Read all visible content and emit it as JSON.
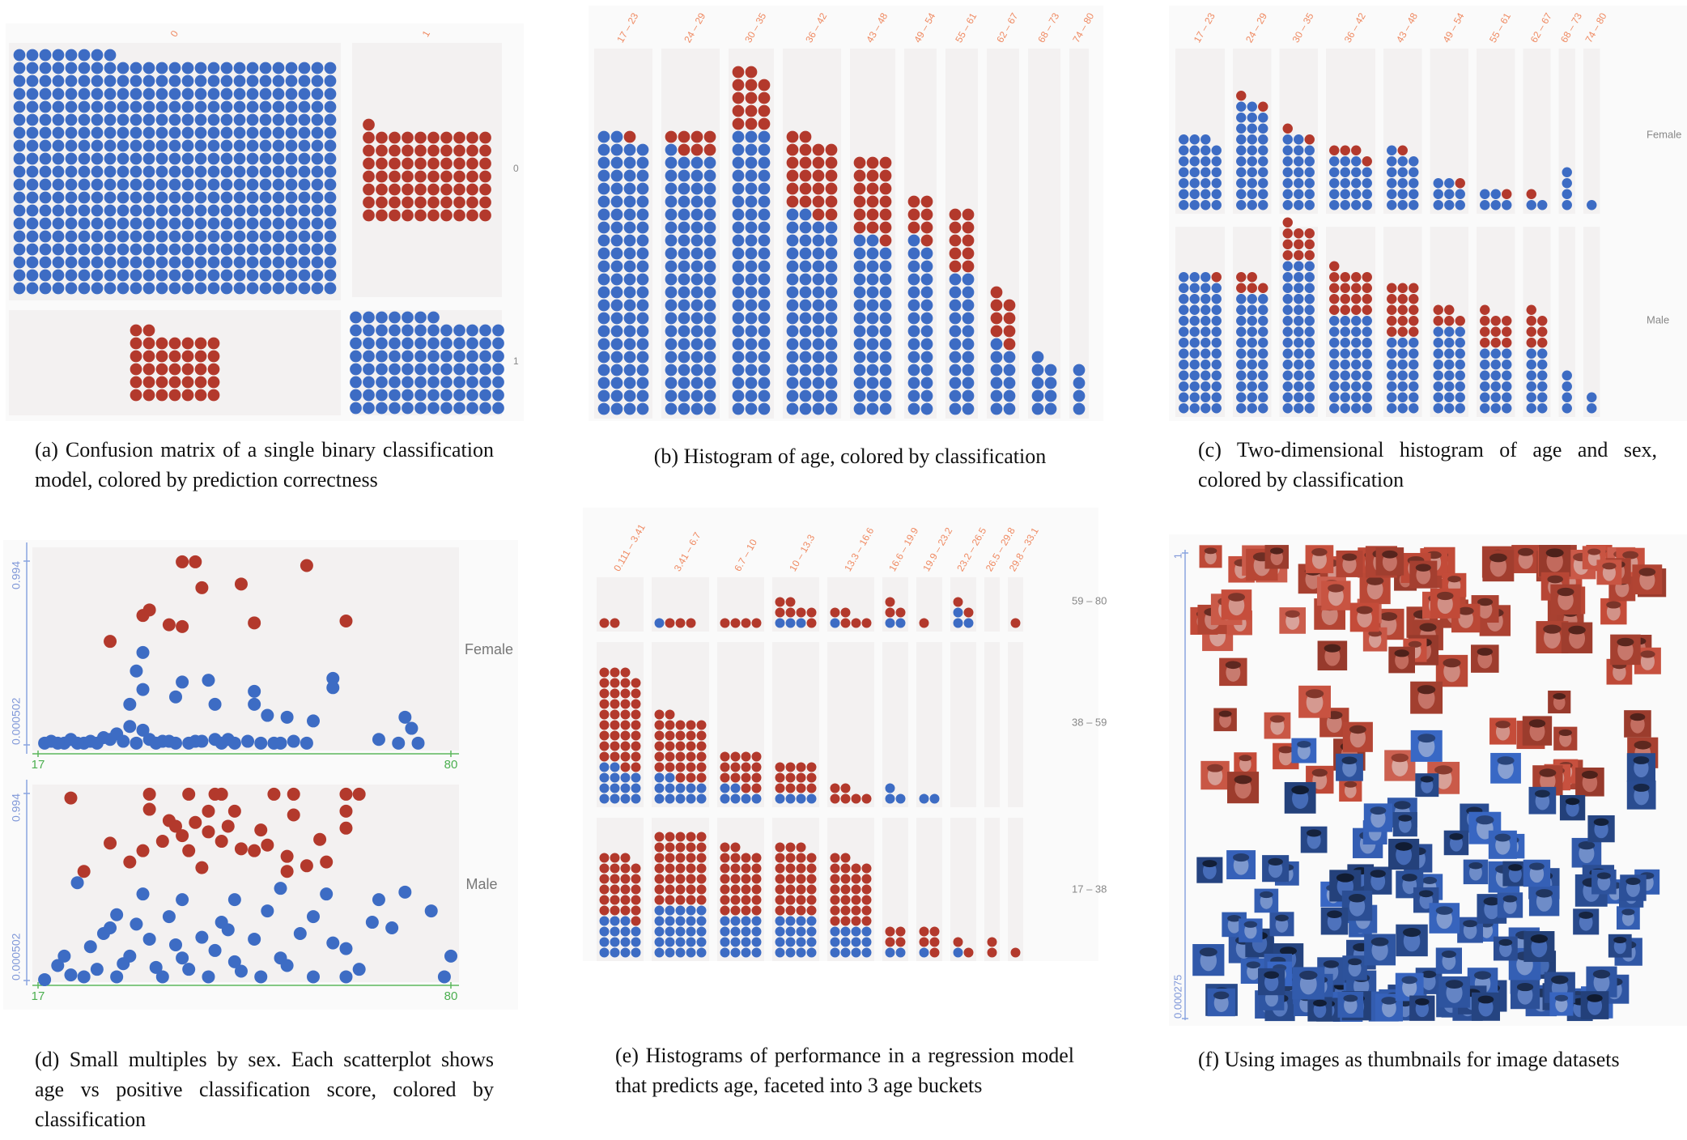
{
  "chart_data": [
    {
      "type": "confusion-matrix",
      "caption": "(a) Confusion matrix of a single binary classification model, colored by prediction correctness",
      "columns": [
        "0",
        "1"
      ],
      "rows": [
        "0",
        "1"
      ],
      "values": [
        [
          458,
          71
        ],
        [
          37,
          91
        ]
      ],
      "colors": [
        [
          "#3d6cc4",
          "#b3392c"
        ],
        [
          "#b3392c",
          "#3d6cc4"
        ]
      ]
    },
    {
      "type": "dot-histogram",
      "caption": "(b) Histogram of age, colored by classification",
      "categories": [
        "17 – 23",
        "24 – 29",
        "30 – 35",
        "36 – 42",
        "43 – 48",
        "49 – 54",
        "55 – 61",
        "62 – 67",
        "68 – 73",
        "74 – 80"
      ],
      "series": [
        {
          "color": "#3d6cc4",
          "values": [
            86,
            81,
            66,
            62,
            41,
            27,
            22,
            11,
            9,
            4
          ]
        },
        {
          "color": "#b3392c",
          "values": [
            1,
            7,
            14,
            24,
            19,
            7,
            10,
            8,
            0,
            0
          ]
        }
      ]
    },
    {
      "type": "dot-histogram",
      "caption": "(c) Two-dimensional histogram of age and sex, colored by classification",
      "categories": [
        "17 – 23",
        "24 – 29",
        "30 – 35",
        "36 – 42",
        "43 – 48",
        "49 – 54",
        "55 – 61",
        "62 – 67",
        "68 – 73",
        "74 – 80"
      ],
      "rows": [
        {
          "label": "Female",
          "series": [
            {
              "color": "#3d6cc4",
              "values": [
                27,
                29,
                20,
                19,
                16,
                8,
                5,
                2,
                4,
                1
              ]
            },
            {
              "color": "#b3392c",
              "values": [
                0,
                2,
                2,
                4,
                1,
                1,
                1,
                1,
                0,
                0
              ]
            }
          ]
        },
        {
          "label": "Male",
          "series": [
            {
              "color": "#3d6cc4",
              "values": [
                51,
                33,
                42,
                36,
                21,
                24,
                18,
                12,
                4,
                2
              ]
            },
            {
              "color": "#b3392c",
              "values": [
                1,
                5,
                10,
                17,
                15,
                5,
                10,
                7,
                0,
                0
              ]
            }
          ]
        }
      ]
    },
    {
      "type": "scatter",
      "caption": "(d) Small multiples by sex. Each scatterplot shows age vs positive classification score, colored by classification",
      "xlim": [
        17,
        80
      ],
      "xticks": [
        17,
        80
      ],
      "ylim": [
        0.000502,
        0.994
      ],
      "yticks": [
        0.000502,
        0.994
      ],
      "facets": [
        {
          "label": "Female",
          "series": [
            {
              "color": "#3d6cc4",
              "x": [
                33,
                32,
                33,
                39,
                43,
                62,
                62,
                38,
                50,
                31,
                44,
                50,
                52,
                55,
                59,
                73,
                74,
                18,
                21,
                24,
                27,
                29,
                31,
                33,
                36,
                38,
                41,
                44,
                47,
                51,
                54,
                58,
                69,
                72,
                75,
                19,
                20,
                22,
                23,
                25,
                26,
                28,
                30,
                32,
                34,
                35,
                37,
                40,
                42,
                45,
                46,
                49,
                53,
                56
              ],
              "values": [
                0.5,
                0.4,
                0.3,
                0.34,
                0.35,
                0.36,
                0.31,
                0.26,
                0.29,
                0.22,
                0.22,
                0.22,
                0.16,
                0.15,
                0.13,
                0.15,
                0.09,
                0.01,
                0.01,
                0.01,
                0.04,
                0.06,
                0.1,
                0.08,
                0.02,
                0.01,
                0.02,
                0.03,
                0.01,
                0.01,
                0.01,
                0.01,
                0.03,
                0.01,
                0.01,
                0.02,
                0.01,
                0.03,
                0.01,
                0.02,
                0.01,
                0.03,
                0.02,
                0.01,
                0.03,
                0.01,
                0.02,
                0.01,
                0.02,
                0.01,
                0.03,
                0.02,
                0.01,
                0.02
              ]
            },
            {
              "color": "#b3392c",
              "x": [
                39,
                41,
                58,
                42,
                48,
                34,
                33,
                37,
                39,
                50,
                64,
                28
              ],
              "values": [
                0.99,
                0.99,
                0.97,
                0.85,
                0.87,
                0.73,
                0.7,
                0.65,
                0.64,
                0.66,
                0.67,
                0.56
              ]
            }
          ]
        },
        {
          "label": "Male",
          "series": [
            {
              "color": "#3d6cc4",
              "x": [
                23,
                33,
                39,
                47,
                54,
                61,
                69,
                73,
                29,
                37,
                45,
                52,
                59,
                68,
                77,
                27,
                34,
                42,
                50,
                57,
                64,
                80,
                21,
                31,
                39,
                47,
                54,
                64,
                79,
                18,
                24,
                29,
                36,
                43,
                51,
                59,
                20,
                22,
                25,
                26,
                28,
                30,
                32,
                35,
                38,
                40,
                44,
                46,
                48,
                55,
                62,
                66,
                71
              ],
              "values": [
                0.52,
                0.46,
                0.43,
                0.43,
                0.49,
                0.46,
                0.43,
                0.47,
                0.35,
                0.34,
                0.31,
                0.37,
                0.34,
                0.31,
                0.37,
                0.25,
                0.22,
                0.23,
                0.22,
                0.25,
                0.17,
                0.13,
                0.13,
                0.13,
                0.12,
                0.1,
                0.12,
                0.02,
                0.02,
                0.005,
                0.02,
                0.02,
                0.02,
                0.02,
                0.02,
                0.02,
                0.08,
                0.03,
                0.18,
                0.06,
                0.28,
                0.09,
                0.3,
                0.07,
                0.19,
                0.06,
                0.16,
                0.27,
                0.05,
                0.08,
                0.2,
                0.06,
                0.28
              ]
            },
            {
              "color": "#b3392c",
              "x": [
                22,
                34,
                40,
                44,
                45,
                53,
                56,
                64,
                66,
                34,
                43,
                47,
                56,
                64,
                38,
                43,
                51,
                64,
                28,
                33,
                36,
                40,
                45,
                50,
                55,
                61,
                31,
                42,
                24,
                55,
                37,
                39,
                41,
                46,
                48,
                52,
                58,
                60
              ],
              "values": [
                0.97,
                0.99,
                0.99,
                0.99,
                0.99,
                0.99,
                0.99,
                0.99,
                0.99,
                0.91,
                0.9,
                0.9,
                0.88,
                0.9,
                0.82,
                0.79,
                0.8,
                0.81,
                0.73,
                0.69,
                0.74,
                0.69,
                0.74,
                0.69,
                0.66,
                0.63,
                0.63,
                0.6,
                0.58,
                0.58,
                0.85,
                0.77,
                0.84,
                0.82,
                0.7,
                0.72,
                0.61,
                0.75
              ]
            }
          ]
        }
      ]
    },
    {
      "type": "dot-histogram",
      "caption": "(e) Histograms of performance in a regression model that predicts age, faceted into 3 age buckets",
      "categories": [
        "0.111 – 3.41",
        "3.41 – 6.7",
        "6.7 – 10",
        "10 – 13.3",
        "13.3 – 16.6",
        "16.6 – 19.9",
        "19.9 – 23.2",
        "23.2 – 26.5",
        "26.5 – 29.8",
        "29.8 – 33.1"
      ],
      "rows": [
        {
          "label": "59 – 80",
          "series": [
            {
              "color": "#3d6cc4",
              "values": [
                0,
                1,
                0,
                3,
                1,
                2,
                0,
                3,
                0,
                0
              ]
            },
            {
              "color": "#b3392c",
              "values": [
                2,
                3,
                4,
                7,
                5,
                3,
                1,
                2,
                0,
                1
              ]
            }
          ]
        },
        {
          "label": "38 – 59",
          "series": [
            {
              "color": "#3d6cc4",
              "values": [
                14,
                12,
                6,
                4,
                0,
                3,
                2,
                0,
                0,
                0
              ]
            },
            {
              "color": "#b3392c",
              "values": [
                37,
                30,
                14,
                12,
                6,
                0,
                0,
                0,
                0,
                0
              ]
            }
          ]
        },
        {
          "label": "17 – 38",
          "series": [
            {
              "color": "#3d6cc4",
              "values": [
                15,
                25,
                16,
                16,
                12,
                2,
                1,
                1,
                0,
                0
              ]
            },
            {
              "color": "#b3392c",
              "values": [
                24,
                35,
                26,
                27,
                26,
                4,
                5,
                2,
                2,
                1
              ]
            }
          ]
        }
      ]
    },
    {
      "type": "image-scatter",
      "caption": "(f) Using images as thumbnails for image datasets",
      "ylim": [
        0.000275,
        1
      ],
      "yticks": [
        0.000275,
        1
      ]
    }
  ]
}
